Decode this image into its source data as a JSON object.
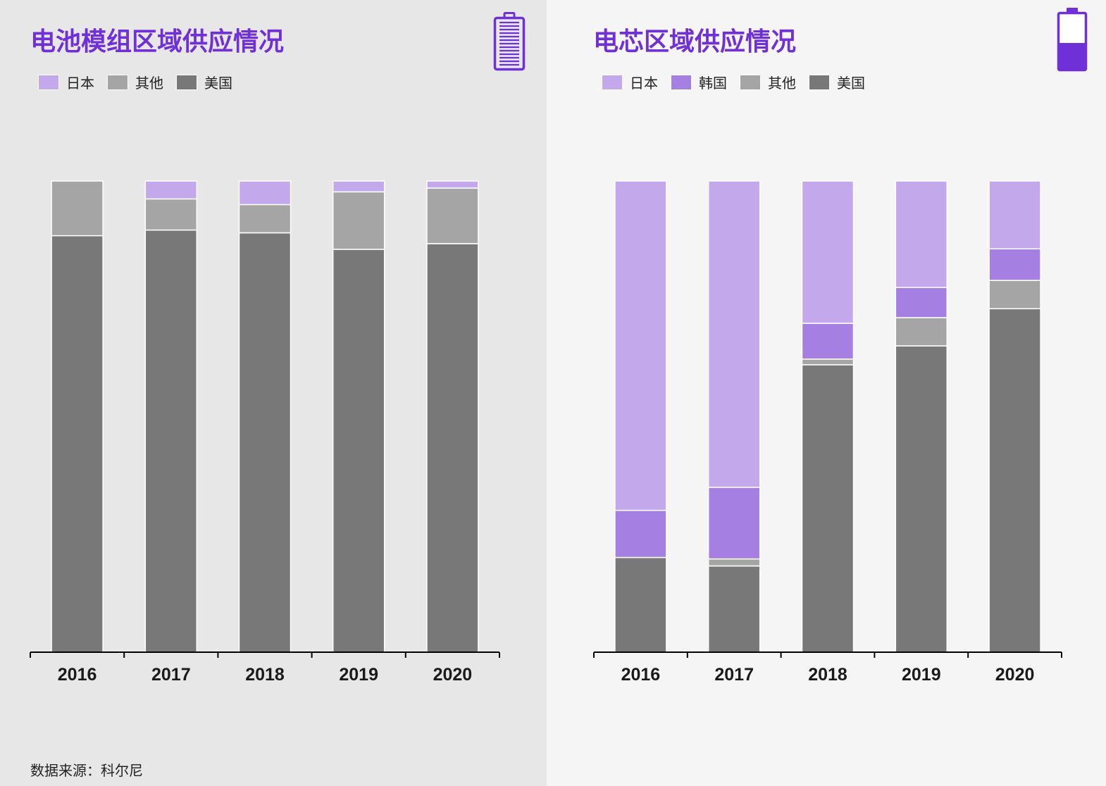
{
  "source_note": "数据来源：科尔尼",
  "colors": {
    "japan": "#c3a8eb",
    "korea": "#a67fe3",
    "other": "#a5a5a5",
    "usa": "#787878",
    "accent": "#7030d8",
    "panel_left_bg": "#e7e7e7",
    "panel_right_bg": "#f5f5f5"
  },
  "icons": {
    "left": "battery-full-icon",
    "right": "battery-low-icon"
  },
  "chart_data": [
    {
      "type": "bar",
      "stacked": true,
      "title": "电池模组区域供应情况",
      "categories": [
        "2016",
        "2017",
        "2018",
        "2019",
        "2020"
      ],
      "legend": [
        "日本",
        "其他",
        "美国"
      ],
      "series": [
        {
          "name": "美国",
          "color": "#787878",
          "values": [
            88.4,
            89.6,
            89.0,
            85.5,
            86.7
          ]
        },
        {
          "name": "其他",
          "color": "#a5a5a5",
          "values": [
            11.6,
            6.6,
            6.0,
            12.2,
            11.8
          ]
        },
        {
          "name": "日本",
          "color": "#c3a8eb",
          "values": [
            0,
            3.8,
            5.0,
            2.3,
            1.5
          ]
        }
      ],
      "ylim": [
        0,
        100
      ],
      "legend_position": "top-left",
      "grid": false
    },
    {
      "type": "bar",
      "stacked": true,
      "title": "电芯区域供应情况",
      "categories": [
        "2016",
        "2017",
        "2018",
        "2019",
        "2020"
      ],
      "legend": [
        "日本",
        "韩国",
        "其他",
        "美国"
      ],
      "series": [
        {
          "name": "美国",
          "color": "#787878",
          "values": [
            20.1,
            18.3,
            61.0,
            65.0,
            72.9
          ]
        },
        {
          "name": "其他",
          "color": "#a5a5a5",
          "values": [
            0,
            1.5,
            1.2,
            6.0,
            6.0
          ]
        },
        {
          "name": "韩国",
          "color": "#a67fe3",
          "values": [
            10.0,
            15.2,
            7.6,
            6.4,
            6.7
          ]
        },
        {
          "name": "日本",
          "color": "#c3a8eb",
          "values": [
            69.9,
            65.0,
            30.2,
            22.6,
            14.4
          ]
        }
      ],
      "ylim": [
        0,
        100
      ],
      "legend_position": "top-left",
      "grid": false
    }
  ]
}
